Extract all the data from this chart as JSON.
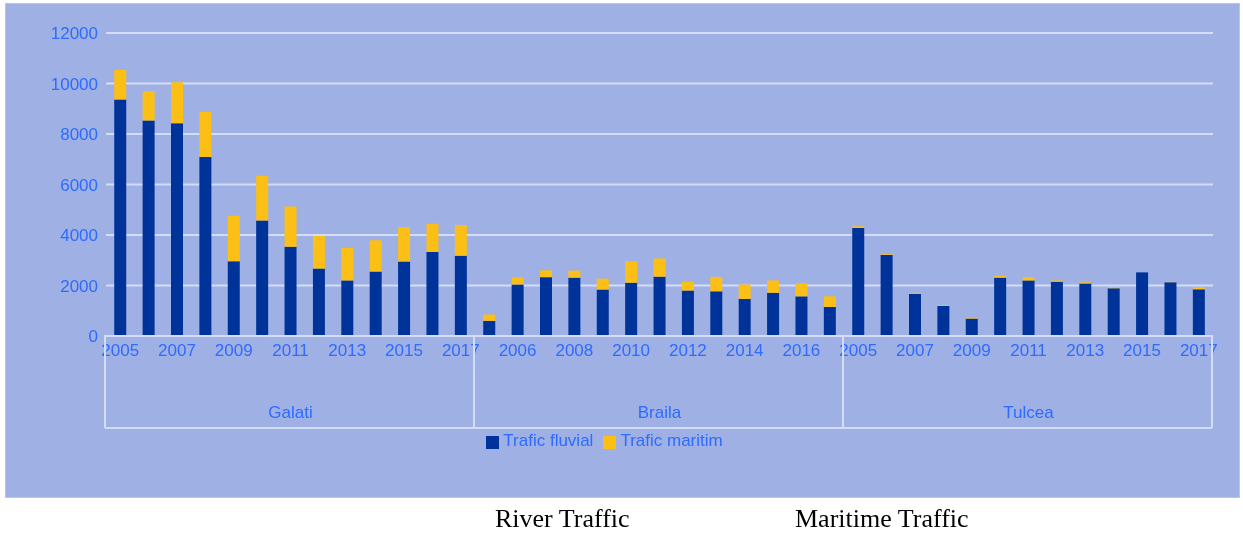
{
  "chart_data": {
    "type": "bar",
    "stacked": true,
    "categories": [
      "2005",
      null,
      "2007",
      null,
      "2009",
      null,
      "2011",
      null,
      "2013",
      null,
      "2015",
      null,
      "2017",
      null,
      "2006",
      null,
      "2008",
      null,
      "2010",
      null,
      "2012",
      null,
      "2014",
      null,
      "2016",
      null,
      "2005",
      null,
      "2007",
      null,
      "2009",
      null,
      "2011",
      null,
      "2013",
      null,
      "2015",
      null,
      "2017"
    ],
    "series": [
      {
        "name": "Trafic fluvial",
        "color": "#003399",
        "values": [
          9370,
          8530,
          8430,
          7090,
          2960,
          4570,
          3530,
          2670,
          2200,
          2550,
          2950,
          3330,
          3180,
          600,
          2040,
          2330,
          2310,
          1840,
          2110,
          2350,
          1800,
          1770,
          1470,
          1710,
          1570,
          1150,
          4280,
          3210,
          1670,
          1190,
          690,
          2310,
          2200,
          2150,
          2080,
          1890,
          2520,
          2130,
          1850
        ]
      },
      {
        "name": "Trafic maritim",
        "color": "#fbbf16",
        "values": [
          1160,
          1160,
          1620,
          1780,
          1800,
          1780,
          1600,
          1290,
          1290,
          1240,
          1360,
          1120,
          1220,
          250,
          280,
          270,
          280,
          430,
          850,
          720,
          350,
          570,
          570,
          490,
          510,
          420,
          70,
          30,
          40,
          40,
          40,
          70,
          130,
          50,
          50,
          40,
          null,
          30,
          80
        ]
      }
    ],
    "ylim": [
      0,
      12000
    ],
    "yticks": [
      0,
      2000,
      4000,
      6000,
      8000,
      10000,
      12000
    ],
    "grid": "y",
    "legend": "bottom",
    "annotations": [
      "Galati",
      "Braila",
      "Tulcea",
      "River Traffic",
      "Maritime Traffic"
    ]
  }
}
